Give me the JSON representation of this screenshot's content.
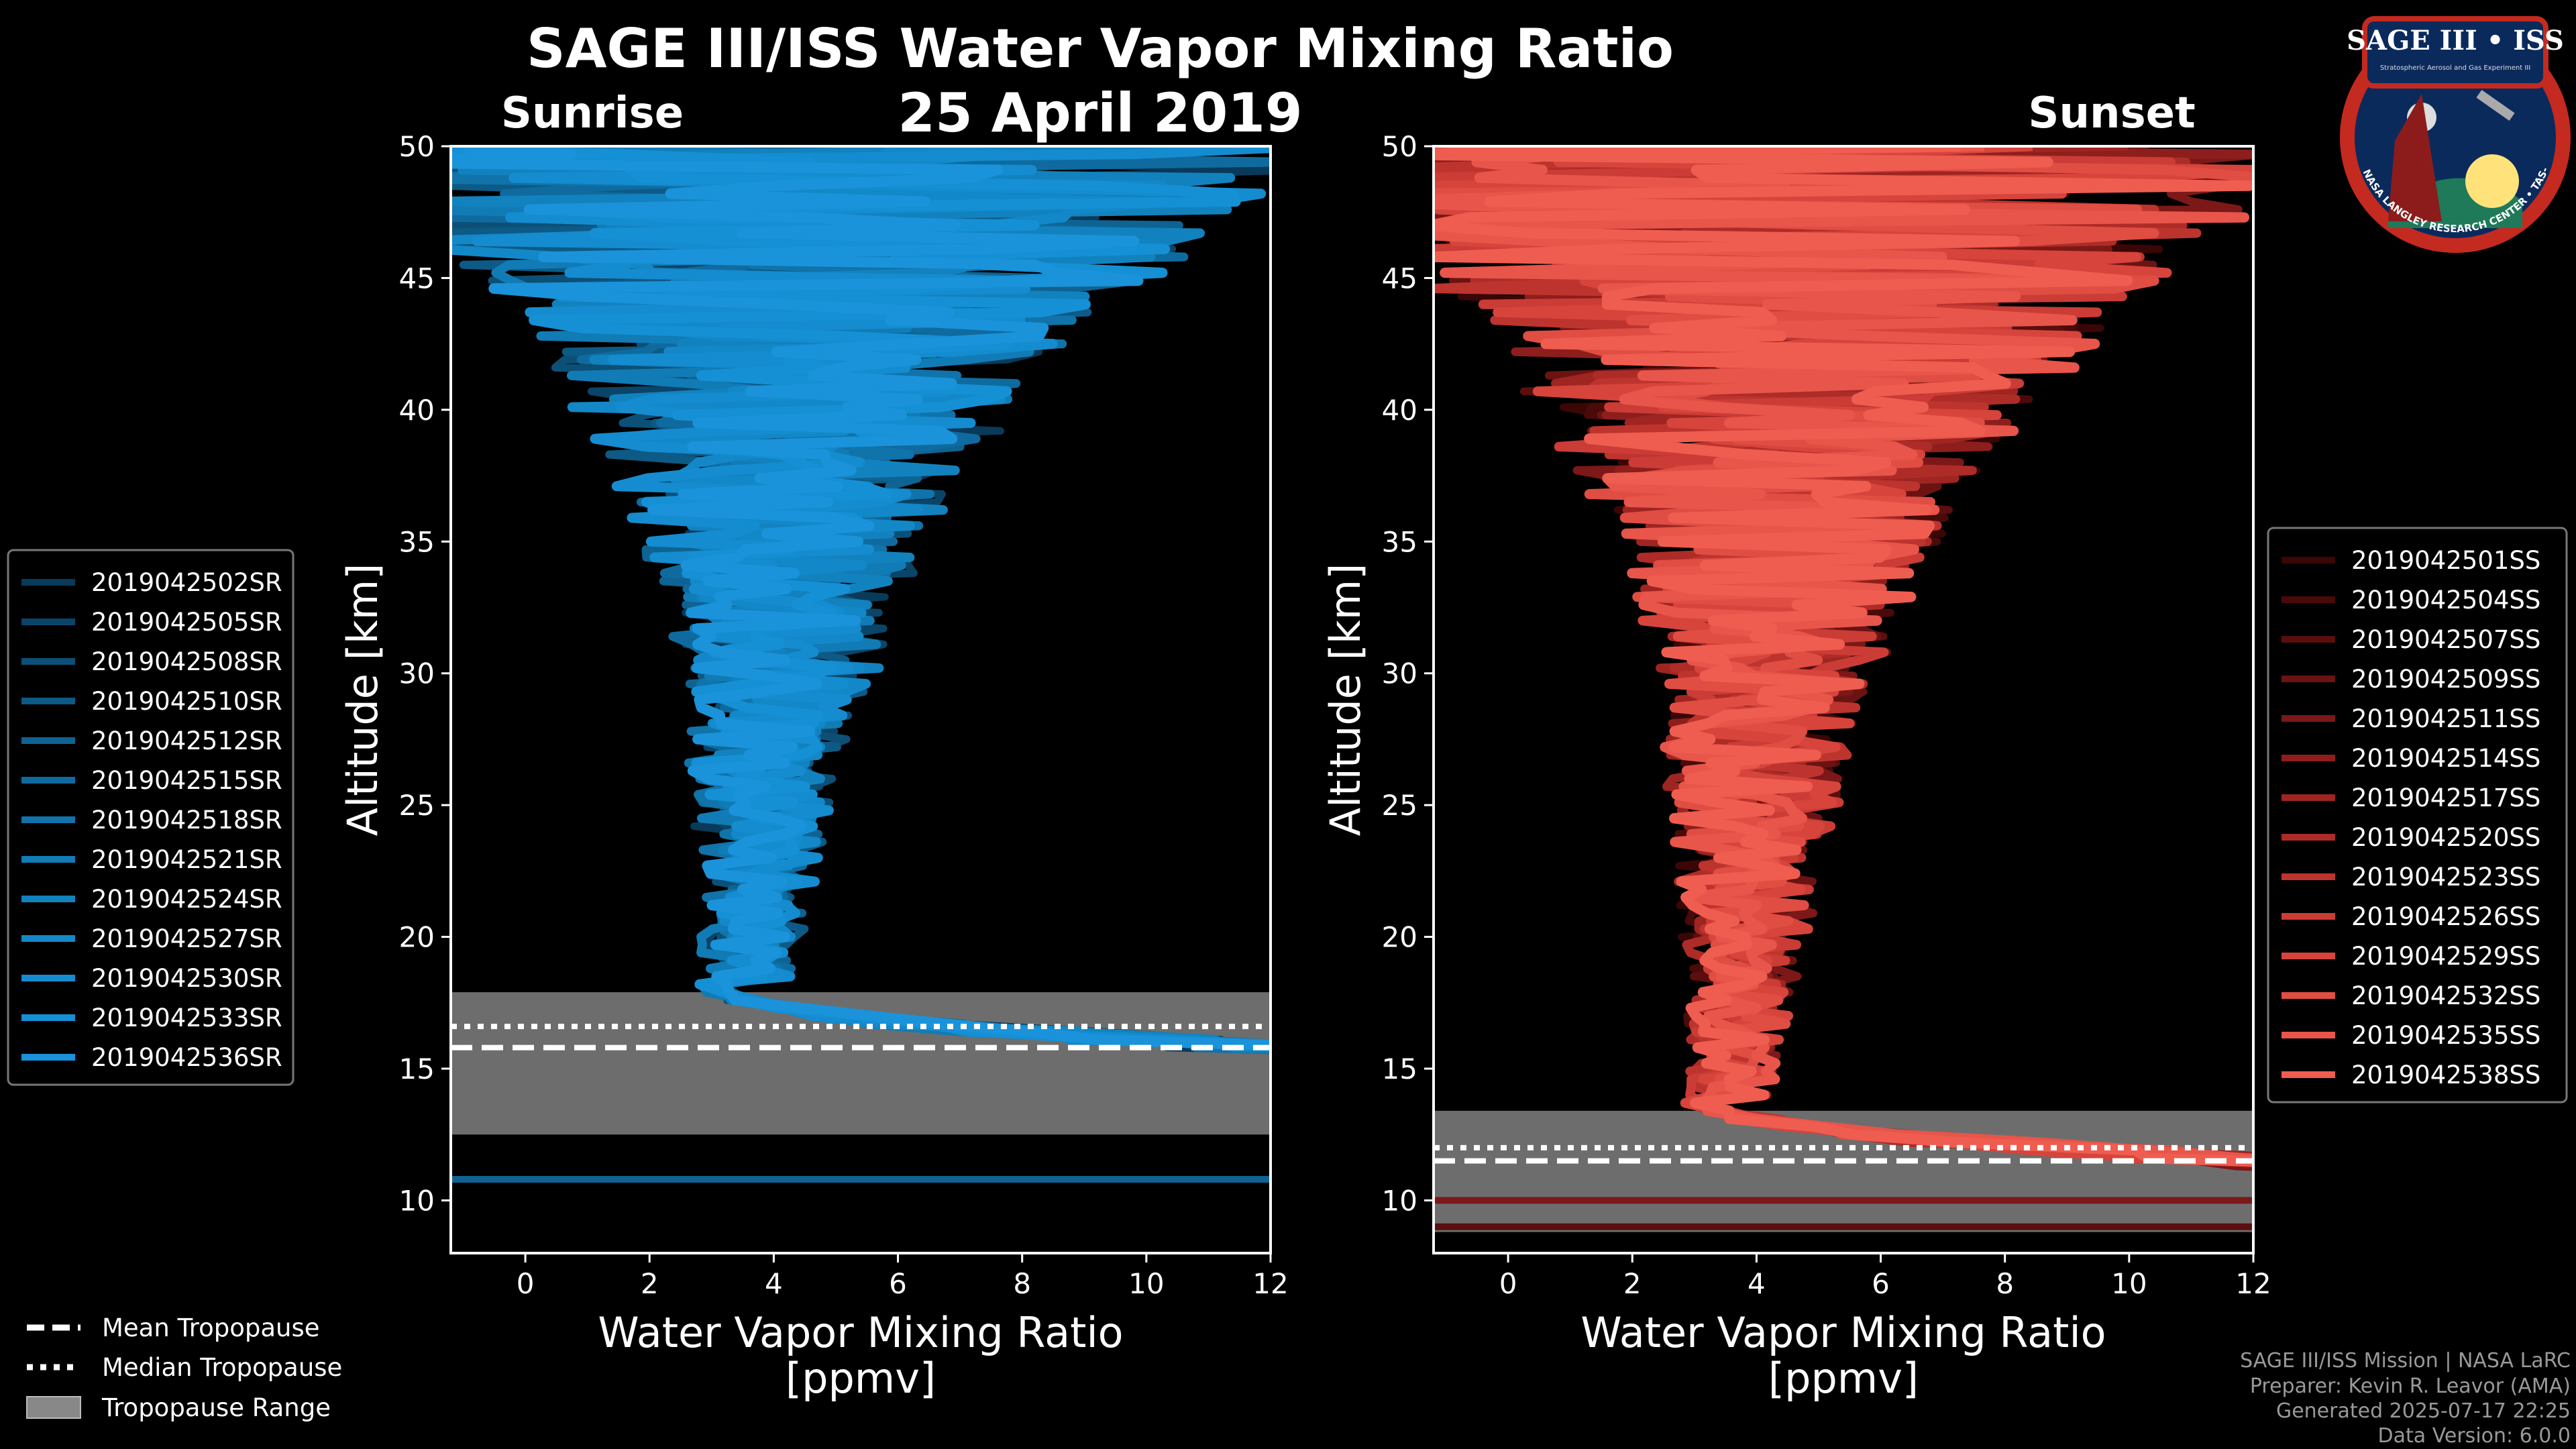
{
  "title": "SAGE III/ISS Water Vapor Mixing Ratio",
  "date": "25 April 2019",
  "logo": {
    "text_top": "SAGE III • ISS",
    "text_sub": "Stratospheric Aerosol and Gas Experiment III",
    "text_ring": "BALL • NASA LANGLEY RESEARCH CENTER • TAS-I • ESA"
  },
  "credits": [
    "SAGE III/ISS Mission | NASA LaRC",
    "Preparer: Kevin R. Leavor (AMA)",
    "Generated 2025-07-17 22:25",
    "Data Version: 6.0.0"
  ],
  "tropopause_legend": [
    {
      "label": "Mean Tropopause",
      "style": "dashed"
    },
    {
      "label": "Median Tropopause",
      "style": "dotted"
    },
    {
      "label": "Tropopause Range",
      "style": "patch"
    }
  ],
  "colors": {
    "sunrise_line": "#1a8fd6",
    "sunset_line": "#f06050",
    "tropopause_fill": "#888888"
  },
  "chart_data": [
    {
      "type": "line",
      "title": "Sunrise",
      "xlabel": "Water Vapor Mixing Ratio\n[ppmv]",
      "ylabel": "Altitude [km]",
      "xlim": [
        -1.2,
        12
      ],
      "ylim": [
        8,
        50
      ],
      "xticks": [
        0,
        2,
        4,
        6,
        8,
        10,
        12
      ],
      "yticks": [
        10,
        15,
        20,
        25,
        30,
        35,
        40,
        45,
        50
      ],
      "legend_position": "left",
      "tropopause": {
        "mean": 15.8,
        "median": 16.6,
        "range": [
          12.5,
          17.9
        ]
      },
      "series": [
        {
          "name": "2019042502SR",
          "color": "#083a5a"
        },
        {
          "name": "2019042505SR",
          "color": "#0a4569"
        },
        {
          "name": "2019042508SR",
          "color": "#0c5077"
        },
        {
          "name": "2019042510SR",
          "color": "#0d5a86"
        },
        {
          "name": "2019042512SR",
          "color": "#0e6393"
        },
        {
          "name": "2019042515SR",
          "color": "#0f6b9f"
        },
        {
          "name": "2019042518SR",
          "color": "#1073aa"
        },
        {
          "name": "2019042521SR",
          "color": "#117bb5"
        },
        {
          "name": "2019042524SR",
          "color": "#1282bf"
        },
        {
          "name": "2019042527SR",
          "color": "#1388c8"
        },
        {
          "name": "2019042530SR",
          "color": "#148ccf"
        },
        {
          "name": "2019042533SR",
          "color": "#1590d5"
        },
        {
          "name": "2019042536SR",
          "color": "#1a93da"
        }
      ]
    },
    {
      "type": "line",
      "title": "Sunset",
      "xlabel": "Water Vapor Mixing Ratio\n[ppmv]",
      "ylabel": "Altitude [km]",
      "xlim": [
        -1.2,
        12
      ],
      "ylim": [
        8,
        50
      ],
      "xticks": [
        0,
        2,
        4,
        6,
        8,
        10,
        12
      ],
      "yticks": [
        10,
        15,
        20,
        25,
        30,
        35,
        40,
        45,
        50
      ],
      "legend_position": "right",
      "tropopause": {
        "mean": 11.5,
        "median": 12.0,
        "range": [
          8.8,
          13.4
        ]
      },
      "series": [
        {
          "name": "2019042501SS",
          "color": "#3a0606"
        },
        {
          "name": "2019042504SS",
          "color": "#4a0a0a"
        },
        {
          "name": "2019042507SS",
          "color": "#5a0e0e"
        },
        {
          "name": "2019042509SS",
          "color": "#6b1313"
        },
        {
          "name": "2019042511SS",
          "color": "#7c1818"
        },
        {
          "name": "2019042514SS",
          "color": "#8d1e1c"
        },
        {
          "name": "2019042517SS",
          "color": "#9e2521"
        },
        {
          "name": "2019042520SS",
          "color": "#ae2c27"
        },
        {
          "name": "2019042523SS",
          "color": "#bd342e"
        },
        {
          "name": "2019042526SS",
          "color": "#ca3c35"
        },
        {
          "name": "2019042529SS",
          "color": "#d6443c"
        },
        {
          "name": "2019042532SS",
          "color": "#e04d43"
        },
        {
          "name": "2019042535SS",
          "color": "#e8554a"
        },
        {
          "name": "2019042538SS",
          "color": "#ef5d50"
        }
      ]
    }
  ]
}
